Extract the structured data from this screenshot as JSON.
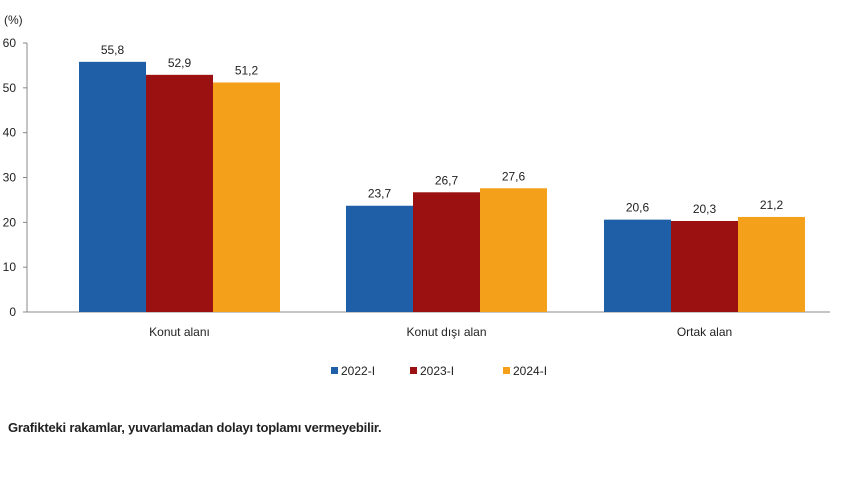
{
  "chart_data": {
    "type": "bar",
    "ylabel": "(%)",
    "ylim": [
      0,
      60
    ],
    "yticks": [
      0,
      10,
      20,
      30,
      40,
      50,
      60
    ],
    "categories": [
      "Konut alanı",
      "Konut dışı alan",
      "Ortak alan"
    ],
    "series": [
      {
        "name": "2022-I",
        "color": "#1f5fa8",
        "values": [
          55.8,
          23.7,
          20.6
        ],
        "labels": [
          "55,8",
          "23,7",
          "20,6"
        ]
      },
      {
        "name": "2023-I",
        "color": "#9b1010",
        "values": [
          52.9,
          26.7,
          20.3
        ],
        "labels": [
          "52,9",
          "26,7",
          "20,3"
        ]
      },
      {
        "name": "2024-I",
        "color": "#f5a01a",
        "values": [
          51.2,
          27.6,
          21.2
        ],
        "labels": [
          "51,2",
          "27,6",
          "21,2"
        ]
      }
    ],
    "legend": "bottom",
    "grid": false
  },
  "footnote": "Grafikteki rakamlar, yuvarlamadan dolayı toplamı vermeyebilir."
}
